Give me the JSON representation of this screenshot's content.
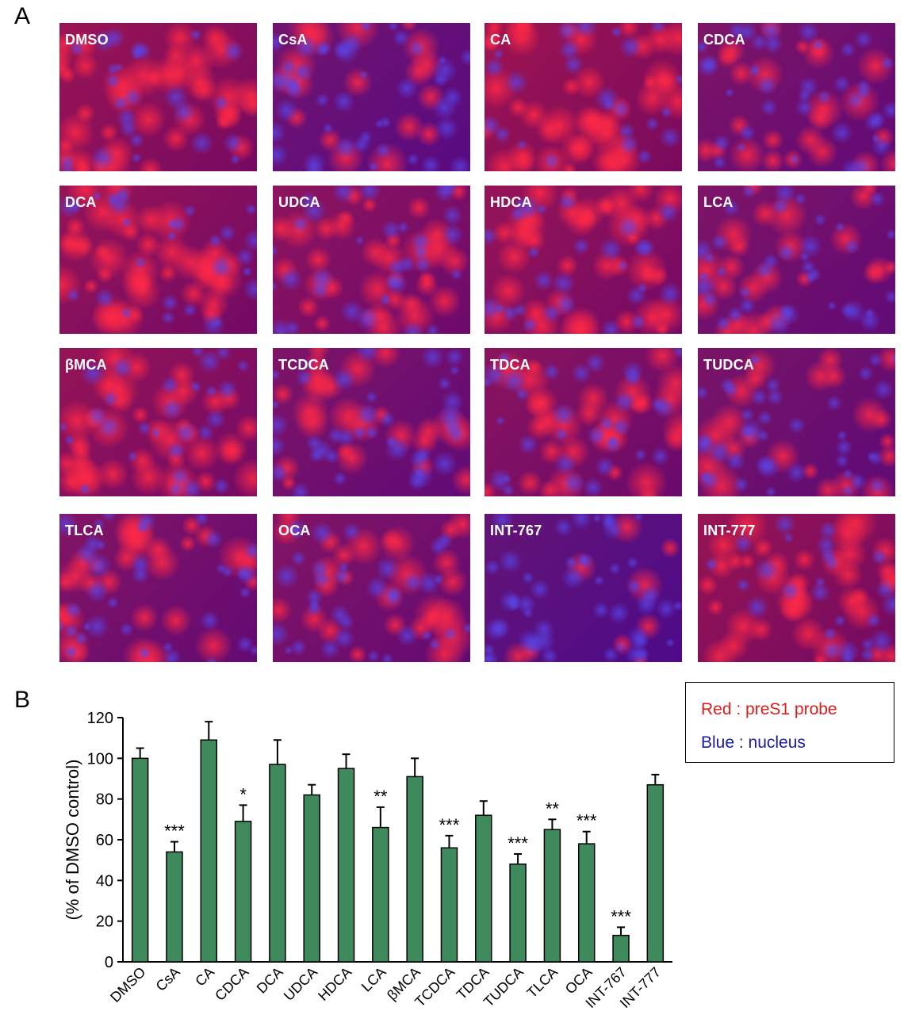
{
  "panel_labels": {
    "a": "A",
    "b": "B"
  },
  "images": [
    {
      "label": "DMSO",
      "red": 0.8,
      "blue": 0.4
    },
    {
      "label": "CsA",
      "red": 0.3,
      "blue": 0.85
    },
    {
      "label": "CA",
      "red": 0.85,
      "blue": 0.35
    },
    {
      "label": "CDCA",
      "red": 0.45,
      "blue": 0.7
    },
    {
      "label": "DCA",
      "red": 0.75,
      "blue": 0.45
    },
    {
      "label": "UDCA",
      "red": 0.65,
      "blue": 0.55
    },
    {
      "label": "HDCA",
      "red": 0.75,
      "blue": 0.45
    },
    {
      "label": "LCA",
      "red": 0.45,
      "blue": 0.7
    },
    {
      "label": "βMCA",
      "red": 0.75,
      "blue": 0.45
    },
    {
      "label": "TCDCA",
      "red": 0.45,
      "blue": 0.7
    },
    {
      "label": "TDCA",
      "red": 0.6,
      "blue": 0.55
    },
    {
      "label": "TUDCA",
      "red": 0.4,
      "blue": 0.7
    },
    {
      "label": "TLCA",
      "red": 0.5,
      "blue": 0.65
    },
    {
      "label": "OCA",
      "red": 0.5,
      "blue": 0.65
    },
    {
      "label": "INT-767",
      "red": 0.12,
      "blue": 0.95
    },
    {
      "label": "INT-777",
      "red": 0.75,
      "blue": 0.4
    }
  ],
  "legend": {
    "red_text": "Red : preS1 probe",
    "blue_text": "Blue : nucleus",
    "red_color": "#e41a1c",
    "blue_color": "#1a1aa6"
  },
  "chart_data": {
    "type": "bar",
    "ylabel": "(% of DMSO control)",
    "ylim": [
      0,
      120
    ],
    "yticks": [
      0,
      20,
      40,
      60,
      80,
      100,
      120
    ],
    "bar_color": "#3e8a5c",
    "categories": [
      "DMSO",
      "CsA",
      "CA",
      "CDCA",
      "DCA",
      "UDCA",
      "HDCA",
      "LCA",
      "βMCA",
      "TCDCA",
      "TDCA",
      "TUDCA",
      "TLCA",
      "OCA",
      "INT-767",
      "INT-777"
    ],
    "values": [
      100,
      54,
      109,
      69,
      97,
      82,
      95,
      66,
      91,
      56,
      72,
      48,
      65,
      58,
      13,
      87
    ],
    "errors": [
      5,
      5,
      9,
      8,
      12,
      5,
      7,
      10,
      9,
      6,
      7,
      5,
      5,
      6,
      4,
      5
    ],
    "significance": [
      "",
      "***",
      "",
      "*",
      "",
      "",
      "",
      "**",
      "",
      "***",
      "",
      "***",
      "**",
      "***",
      "***",
      ""
    ]
  }
}
